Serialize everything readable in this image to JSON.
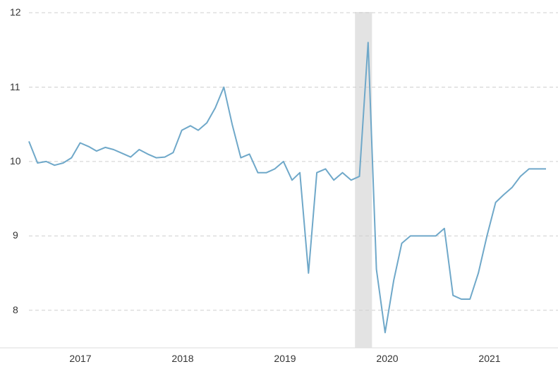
{
  "chart_data": {
    "type": "line",
    "title": "",
    "xlabel": "",
    "ylabel": "",
    "ylim": [
      7.45,
      12
    ],
    "xlim": [
      "2016-07-01",
      "2021-08-01"
    ],
    "y_ticks": [
      "12",
      "11",
      "10",
      "9",
      "8"
    ],
    "x_ticks": [
      "2017",
      "2018",
      "2019",
      "2020",
      "2021"
    ],
    "grid": "horizontal-dashed",
    "line_color": "#6fa8c9",
    "shaded_band": {
      "start": "2019-09-15",
      "end": "2019-11-15",
      "color": "#e3e3e3"
    },
    "series": [
      {
        "x": [
          "2016-07-01",
          "2016-08-01",
          "2016-09-01",
          "2016-10-01",
          "2016-11-01",
          "2016-12-01",
          "2017-01-01",
          "2017-02-01",
          "2017-03-01",
          "2017-04-01",
          "2017-05-01",
          "2017-06-01",
          "2017-07-01",
          "2017-08-01",
          "2017-09-01",
          "2017-10-01",
          "2017-11-01",
          "2017-12-01",
          "2018-01-01",
          "2018-02-01",
          "2018-03-01",
          "2018-04-01",
          "2018-05-01",
          "2018-06-01",
          "2018-07-01",
          "2018-08-01",
          "2018-09-01",
          "2018-10-01",
          "2018-11-01",
          "2018-12-01",
          "2019-01-01",
          "2019-02-01",
          "2019-03-01",
          "2019-04-01",
          "2019-05-01",
          "2019-06-01",
          "2019-07-01",
          "2019-08-01",
          "2019-09-01",
          "2019-10-01",
          "2019-11-01",
          "2019-12-01",
          "2020-01-01",
          "2020-02-01",
          "2020-03-01",
          "2020-04-01",
          "2020-05-01",
          "2020-06-01",
          "2020-07-01",
          "2020-08-01",
          "2020-09-01",
          "2020-10-01",
          "2020-11-01",
          "2020-12-01",
          "2021-01-01",
          "2021-02-01",
          "2021-03-01",
          "2021-04-01",
          "2021-05-01",
          "2021-06-01",
          "2021-07-01",
          "2021-08-01"
        ],
        "y": [
          10.27,
          9.98,
          10.0,
          9.95,
          9.98,
          10.05,
          10.25,
          10.2,
          10.14,
          10.19,
          10.16,
          10.11,
          10.06,
          10.16,
          10.1,
          10.05,
          10.06,
          10.12,
          10.42,
          10.48,
          10.42,
          10.52,
          10.72,
          11.0,
          10.5,
          10.05,
          10.1,
          9.85,
          9.85,
          9.9,
          10.0,
          9.75,
          9.85,
          8.5,
          9.85,
          9.9,
          9.75,
          9.85,
          9.75,
          9.8,
          11.6,
          8.55,
          7.7,
          8.4,
          8.9,
          9.0,
          9.0,
          9.0,
          9.0,
          9.1,
          8.2,
          8.15,
          8.15,
          8.5,
          9.0,
          9.45,
          9.55,
          9.65,
          9.8,
          9.9,
          9.9,
          9.9
        ]
      }
    ]
  }
}
